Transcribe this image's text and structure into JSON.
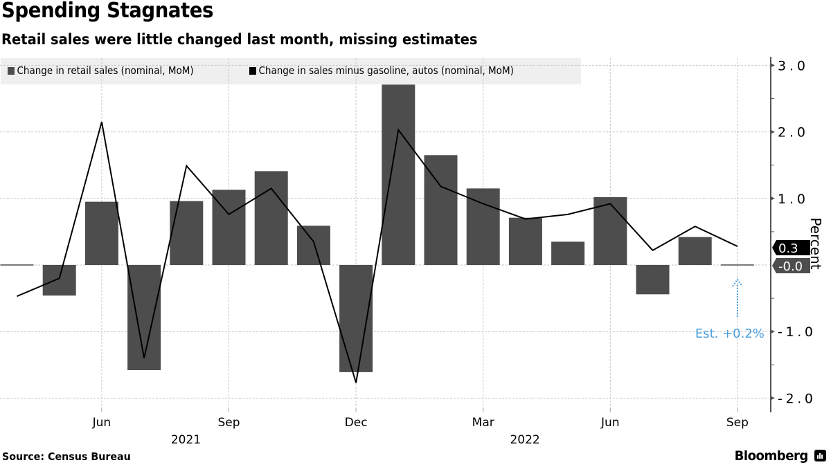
{
  "header": {
    "title": "Spending Stagnates",
    "subtitle": "Retail sales were little changed last month, missing estimates"
  },
  "footer": {
    "source": "Source: Census Bureau",
    "brand": "Bloomberg",
    "brand_icon": "bloomberg-terminal-icon"
  },
  "colors": {
    "bars": "#4d4d4d",
    "line": "#000000",
    "estimate": "#4a9fe0",
    "grid": "#c8c8c8",
    "legend_bg": "#efefef"
  },
  "chart_data": {
    "type": "bar",
    "title": "Spending Stagnates",
    "subtitle": "Retail sales were little changed last month, missing estimates",
    "xlabel": "",
    "ylabel": "Percent",
    "ylim": [
      -2.2,
      3.1
    ],
    "yticks": [
      3.0,
      2.0,
      1.0,
      -1.0,
      -2.0
    ],
    "ytick_labels": [
      "3.0",
      "2.0",
      "1.0",
      "-1.0",
      "-2.0"
    ],
    "grid": true,
    "legend_position": "top-left",
    "categories": [
      "Apr 2021",
      "May 2021",
      "Jun 2021",
      "Jul 2021",
      "Aug 2021",
      "Sep 2021",
      "Oct 2021",
      "Nov 2021",
      "Dec 2021",
      "Jan 2022",
      "Feb 2022",
      "Mar 2022",
      "Apr 2022",
      "May 2022",
      "Jun 2022",
      "Jul 2022",
      "Aug 2022",
      "Sep 2022"
    ],
    "x_tick_labels": [
      {
        "category_index": 2,
        "label": "Jun"
      },
      {
        "category_index": 5,
        "label": "Sep"
      },
      {
        "category_index": 8,
        "label": "Dec"
      },
      {
        "category_index": 11,
        "label": "Mar"
      },
      {
        "category_index": 14,
        "label": "Jun"
      },
      {
        "category_index": 17,
        "label": "Sep"
      }
    ],
    "year_labels": [
      {
        "category_index": 5,
        "label": "2021"
      },
      {
        "category_index": 13,
        "label": "2022"
      }
    ],
    "series": [
      {
        "name": "Change in retail sales (nominal, MoM)",
        "type": "bar",
        "values": [
          0.0,
          -0.46,
          0.95,
          -1.58,
          0.96,
          1.13,
          1.41,
          0.59,
          -1.61,
          2.71,
          1.65,
          1.15,
          0.71,
          0.35,
          1.02,
          -0.44,
          0.42,
          -0.0
        ],
        "last_value_label": "-0.0"
      },
      {
        "name": "Change in sales minus gasoline, autos (nominal, MoM)",
        "type": "line",
        "values": [
          -0.47,
          -0.2,
          2.15,
          -1.4,
          1.49,
          0.76,
          1.15,
          0.35,
          -1.77,
          2.03,
          1.18,
          0.92,
          0.69,
          0.76,
          0.92,
          0.22,
          0.58,
          0.28
        ],
        "last_value_label": "0.3"
      }
    ],
    "annotations": [
      {
        "text": "Est. +0.2%",
        "category_index": 17,
        "value": 0.2,
        "type": "dotted-arrow"
      }
    ]
  }
}
